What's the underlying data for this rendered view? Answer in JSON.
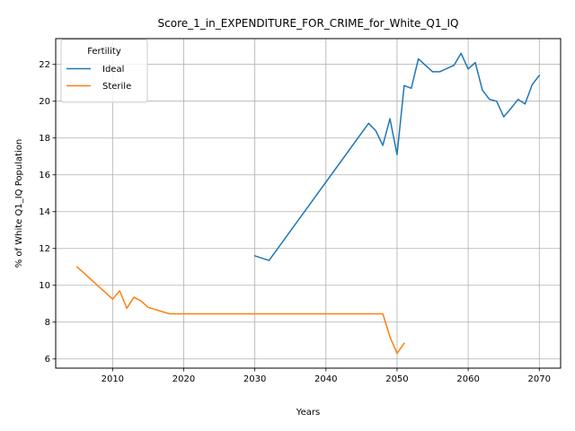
{
  "chart_data": {
    "type": "line",
    "title": "Score_1_in_EXPENDITURE_FOR_CRIME_for_White_Q1_IQ",
    "xlabel": "Years",
    "ylabel": "% of White Q1_IQ Population",
    "xlim": [
      2002,
      2073
    ],
    "ylim": [
      5.5,
      23.4
    ],
    "xticks": [
      2010,
      2020,
      2030,
      2040,
      2050,
      2060,
      2070
    ],
    "yticks": [
      6,
      8,
      10,
      12,
      14,
      16,
      18,
      20,
      22
    ],
    "grid": true,
    "legend": {
      "title": "Fertility",
      "placement": "upper-left"
    },
    "series": [
      {
        "name": "Ideal",
        "color": "#1f77b4",
        "x": [
          2030,
          2032,
          2046,
          2047,
          2048,
          2049,
          2050,
          2051,
          2052,
          2053,
          2055,
          2056,
          2058,
          2059,
          2060,
          2061,
          2062,
          2063,
          2064,
          2065,
          2066,
          2067,
          2068,
          2069,
          2070
        ],
        "y": [
          11.6,
          11.35,
          18.8,
          18.4,
          17.6,
          19.05,
          17.1,
          20.85,
          20.7,
          22.3,
          21.6,
          21.6,
          21.95,
          22.6,
          21.75,
          22.1,
          20.6,
          20.1,
          20.0,
          19.15,
          19.6,
          20.1,
          19.85,
          20.9,
          21.4
        ]
      },
      {
        "name": "Sterile",
        "color": "#ff7f0e",
        "x": [
          2005,
          2010,
          2011,
          2012,
          2013,
          2014,
          2015,
          2018,
          2020,
          2030,
          2040,
          2047,
          2048,
          2049,
          2050,
          2051
        ],
        "y": [
          11.0,
          9.25,
          9.7,
          8.75,
          9.35,
          9.15,
          8.8,
          8.45,
          8.45,
          8.45,
          8.45,
          8.45,
          8.45,
          7.2,
          6.3,
          6.85
        ]
      }
    ]
  }
}
